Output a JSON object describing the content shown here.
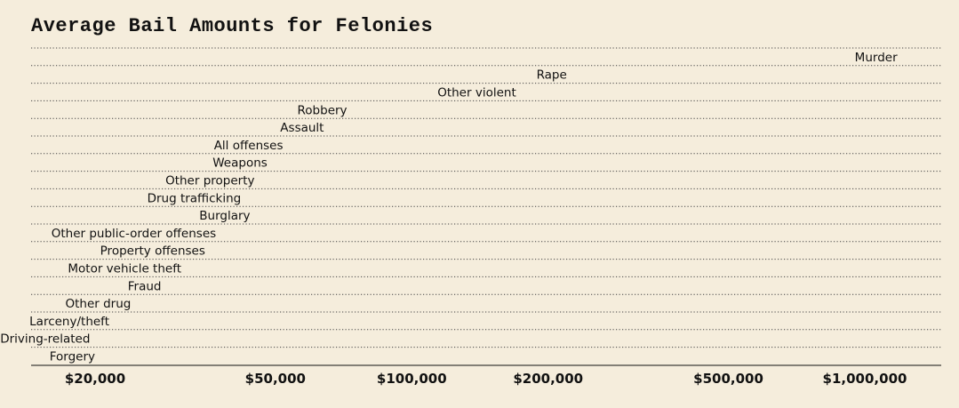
{
  "chart_data": {
    "type": "scatter",
    "title": "Average Bail Amounts for Felonies",
    "xlabel": "",
    "ylabel": "",
    "x_scale": "log",
    "xlim": [
      17500,
      1400000
    ],
    "grid": "horizontal dotted",
    "categories": [
      "Murder",
      "Rape",
      "Other violent",
      "Robbery",
      "Assault",
      "All offenses",
      "Weapons",
      "Other property",
      "Drug trafficking",
      "Burglary",
      "Other public-order offenses",
      "Property offenses",
      "Motor vehicle theft",
      "Fraud",
      "Other drug",
      "Larceny/theft",
      "Driving-related",
      "Forgery"
    ],
    "values": [
      1180000,
      220000,
      170000,
      72000,
      64000,
      52000,
      48000,
      45000,
      42000,
      44000,
      37000,
      35000,
      31000,
      28000,
      24000,
      21500,
      19500,
      20000
    ],
    "x_ticks": [
      20000,
      50000,
      100000,
      200000,
      500000,
      1000000
    ],
    "x_tick_labels": [
      "$20,000",
      "$50,000",
      "$100,000",
      "$200,000",
      "$500,000",
      "$1,000,000"
    ]
  }
}
